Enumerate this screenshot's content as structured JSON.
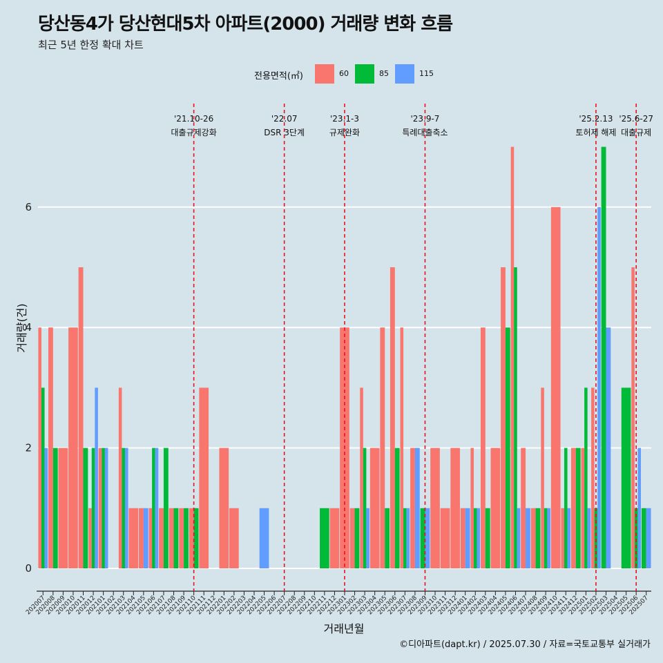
{
  "title": "당산동4가 당산현대5차 아파트(2000) 거래량 변화 흐름",
  "subtitle": "최근 5년 한정 확대 차트",
  "caption": "©디아파트(dapt.kr) / 2025.07.30 / 자료=국토교통부 실거래가",
  "chart_data": {
    "type": "bar",
    "xlabel": "거래년월",
    "ylabel": "거래량(건)",
    "ylim": [
      0,
      7
    ],
    "yticks": [
      0,
      2,
      4,
      6
    ],
    "grid": true,
    "legend": {
      "title": "전용면적(㎡)",
      "position": "top",
      "items": [
        {
          "label": "60",
          "color": "#f8766d"
        },
        {
          "label": "85",
          "color": "#00ba38"
        },
        {
          "label": "115",
          "color": "#619cff"
        }
      ]
    },
    "categories": [
      "202007",
      "202008",
      "202009",
      "202010",
      "202011",
      "202012",
      "202101",
      "202102",
      "202103",
      "202104",
      "202105",
      "202106",
      "202107",
      "202108",
      "202109",
      "202110",
      "202111",
      "202112",
      "202201",
      "202202",
      "202203",
      "202204",
      "202205",
      "202206",
      "202207",
      "202208",
      "202209",
      "202210",
      "202211",
      "202212",
      "202301",
      "202302",
      "202303",
      "202304",
      "202305",
      "202306",
      "202307",
      "202308",
      "202309",
      "202310",
      "202311",
      "202312",
      "202401",
      "202402",
      "202403",
      "202404",
      "202405",
      "202406",
      "202407",
      "202408",
      "202409",
      "202410",
      "202411",
      "202412",
      "202501",
      "202502",
      "202503",
      "202504",
      "202505",
      "202506",
      "202507"
    ],
    "series": [
      {
        "name": "60",
        "color": "#f8766d",
        "values": [
          4,
          4,
          2,
          4,
          5,
          1,
          2,
          0,
          3,
          1,
          1,
          1,
          1,
          1,
          1,
          1,
          3,
          0,
          2,
          1,
          0,
          0,
          0,
          0,
          0,
          0,
          0,
          0,
          0,
          1,
          4,
          1,
          3,
          2,
          4,
          5,
          4,
          2,
          0,
          2,
          1,
          2,
          1,
          2,
          4,
          2,
          5,
          7,
          2,
          1,
          3,
          6,
          1,
          2,
          2,
          3,
          0,
          0,
          0,
          5,
          0
        ]
      },
      {
        "name": "85",
        "color": "#00ba38",
        "values": [
          3,
          2,
          0,
          0,
          2,
          2,
          2,
          0,
          2,
          0,
          0,
          2,
          2,
          1,
          1,
          1,
          0,
          0,
          0,
          0,
          0,
          0,
          0,
          0,
          0,
          0,
          0,
          0,
          1,
          0,
          0,
          1,
          2,
          0,
          1,
          2,
          1,
          0,
          1,
          0,
          0,
          0,
          0,
          1,
          1,
          0,
          4,
          5,
          0,
          1,
          1,
          0,
          2,
          2,
          3,
          1,
          7,
          0,
          3,
          1,
          1
        ]
      },
      {
        "name": "115",
        "color": "#619cff",
        "values": [
          2,
          0,
          0,
          0,
          0,
          3,
          2,
          0,
          2,
          0,
          1,
          2,
          0,
          0,
          0,
          0,
          0,
          0,
          0,
          0,
          0,
          0,
          1,
          0,
          0,
          0,
          0,
          0,
          0,
          0,
          0,
          0,
          1,
          0,
          0,
          0,
          1,
          2,
          1,
          0,
          0,
          0,
          1,
          1,
          0,
          0,
          0,
          1,
          1,
          0,
          1,
          0,
          1,
          0,
          1,
          6,
          4,
          0,
          0,
          2,
          1
        ]
      }
    ],
    "events": [
      {
        "date": "'21.10-26",
        "label": "대출규제강화",
        "category": "202110"
      },
      {
        "date": "'22.07",
        "label": "DSR 3단계",
        "category": "202207"
      },
      {
        "date": "'23.1-3",
        "label": "규제완화",
        "category": "202301"
      },
      {
        "date": "'23.9-7",
        "label": "특례대출축소",
        "category": "202309"
      },
      {
        "date": "'25.2.13",
        "label": "토허제 해제",
        "category": "202502"
      },
      {
        "date": "'25.6-27",
        "label": "대출규제",
        "category": "202506"
      }
    ]
  }
}
